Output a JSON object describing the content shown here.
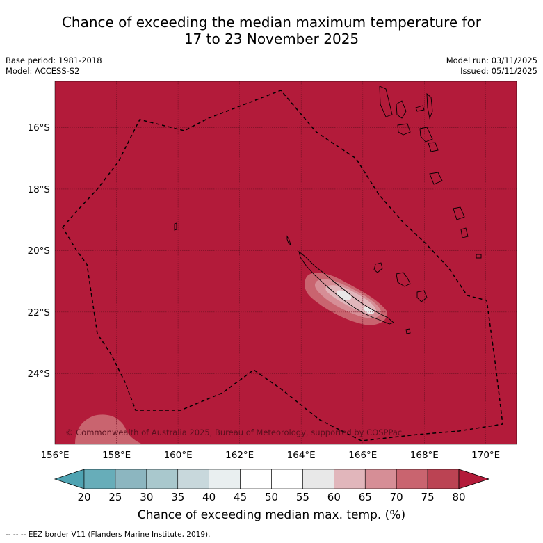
{
  "title": {
    "line1": "Chance of exceeding the median maximum temperature for",
    "line2": "17 to 23 November 2025"
  },
  "meta": {
    "base_period": "Base period: 1981-2018",
    "model": "Model: ACCESS-S2",
    "model_run": "Model run: 03/11/2025",
    "issued": "Issued: 05/11/2025"
  },
  "map": {
    "copyright": "© Commonwealth of Australia 2025, Bureau of Meteorology, supported by COSPPac",
    "lon_ticks": [
      "156°E",
      "158°E",
      "160°E",
      "162°E",
      "164°E",
      "166°E",
      "168°E",
      "170°E"
    ],
    "lat_ticks": [
      "16°S",
      "18°S",
      "20°S",
      "22°S",
      "24°S"
    ],
    "lon_range": [
      156,
      171
    ],
    "lat_range": [
      -14.5,
      -26.3
    ],
    "background_color": "#b31b3a"
  },
  "colorbar": {
    "title": "Chance of exceeding median max. temp. (%)",
    "ticks": [
      "20",
      "25",
      "30",
      "35",
      "40",
      "45",
      "50",
      "55",
      "60",
      "65",
      "70",
      "75",
      "80"
    ],
    "colors": [
      "#67adb9",
      "#8cb6c0",
      "#a9c8cd",
      "#c8d8dc",
      "#e9eff0",
      "#ffffff",
      "#ffffff",
      "#e8e8e8",
      "#e1b6bb",
      "#d68e96",
      "#c9646f",
      "#bb4353"
    ],
    "under_color": "#4ea3b2",
    "over_color": "#b31b3a"
  },
  "footnote": "--  --  -- EEZ border V11 (Flanders Marine Institute, 2019)."
}
